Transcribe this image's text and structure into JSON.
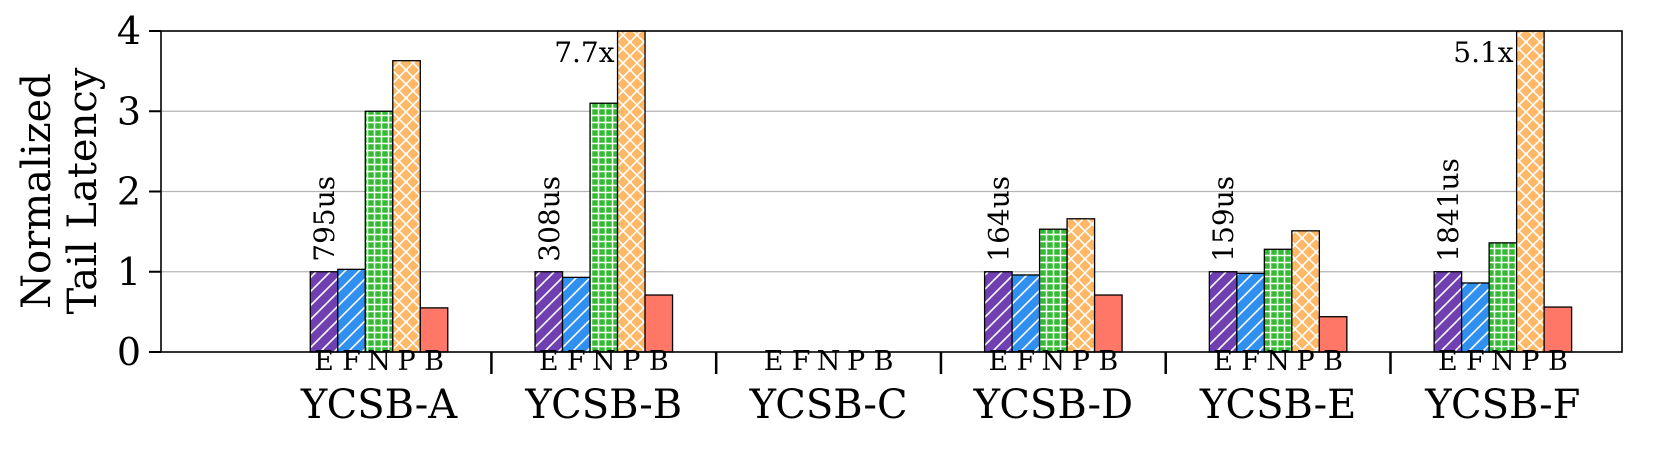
{
  "chart_data": {
    "type": "bar",
    "title": "",
    "ylabel_lines": [
      "Normalized",
      "Tail Latency"
    ],
    "xlabel": "",
    "ylim": [
      0,
      4
    ],
    "yticks": [
      "0",
      "1",
      "2",
      "3",
      "4"
    ],
    "grid": "y",
    "groups": [
      "YCSB-A",
      "YCSB-B",
      "YCSB-C",
      "YCSB-D",
      "YCSB-E",
      "YCSB-F"
    ],
    "bar_letters": [
      "E",
      "F",
      "N",
      "P",
      "B"
    ],
    "series": [
      {
        "letter": "E",
        "color": "#7040b0",
        "hatch": "diag",
        "values": [
          1.0,
          1.0,
          null,
          1.0,
          1.0,
          1.0
        ]
      },
      {
        "letter": "F",
        "color": "#3090f0",
        "hatch": "diag",
        "values": [
          1.03,
          0.93,
          null,
          0.96,
          0.98,
          0.86
        ]
      },
      {
        "letter": "N",
        "color": "#33bb33",
        "hatch": "grid",
        "values": [
          3.0,
          3.1,
          null,
          1.53,
          1.28,
          1.36
        ]
      },
      {
        "letter": "P",
        "color": "#ffb866",
        "hatch": "cross",
        "values": [
          3.63,
          4.0,
          null,
          1.66,
          1.51,
          4.0
        ]
      },
      {
        "letter": "B",
        "color": "#ff7766",
        "hatch": "none",
        "values": [
          0.55,
          0.71,
          null,
          0.71,
          0.44,
          0.56
        ]
      }
    ],
    "baseline_labels": [
      "795us",
      "308us",
      "",
      "164us",
      "159us",
      "1841us"
    ],
    "overflow_labels": [
      {
        "group": 1,
        "letter": "P",
        "text": "7.7x"
      },
      {
        "group": 5,
        "letter": "P",
        "text": "5.1x"
      }
    ]
  }
}
